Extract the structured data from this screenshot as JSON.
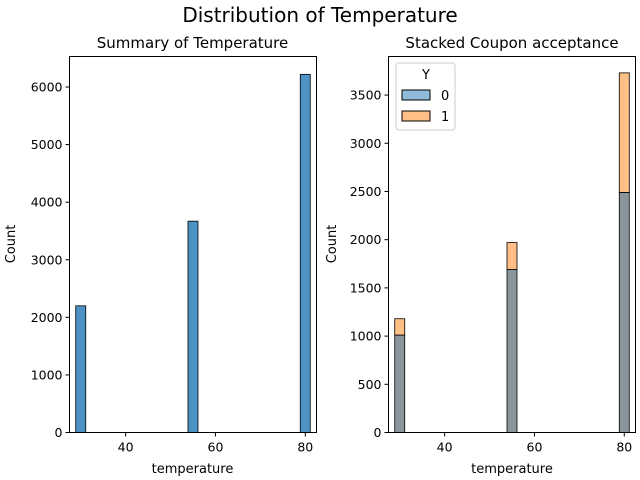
{
  "figure": {
    "suptitle": "Distribution of Temperature"
  },
  "chart_data": [
    {
      "type": "bar",
      "title": "Summary of Temperature",
      "xlabel": "temperature",
      "ylabel": "Count",
      "x": [
        30,
        55,
        80
      ],
      "values": [
        2200,
        3670,
        6220
      ],
      "xlim": [
        27.5,
        82.5
      ],
      "ylim": [
        0,
        6530
      ],
      "xticks": [
        40,
        60,
        80
      ],
      "yticks": [
        0,
        1000,
        2000,
        3000,
        4000,
        5000,
        6000
      ],
      "bar_color": "#1f77b4",
      "legend": null,
      "grid": false
    },
    {
      "type": "bar",
      "stacked": true,
      "title": "Stacked Coupon acceptance",
      "xlabel": "temperature",
      "ylabel": "Count",
      "x": [
        30,
        55,
        80
      ],
      "series": [
        {
          "name": "0",
          "values": [
            1010,
            1690,
            2490
          ],
          "color": "#1f77b4"
        },
        {
          "name": "1",
          "values": [
            170,
            280,
            1240
          ],
          "color": "#ff7f0e"
        }
      ],
      "xlim": [
        27.5,
        82.5
      ],
      "ylim": [
        0,
        3900
      ],
      "xticks": [
        40,
        60,
        80
      ],
      "yticks": [
        0,
        500,
        1000,
        1500,
        2000,
        2500,
        3000,
        3500
      ],
      "legend": {
        "title": "Y",
        "position": "top-left"
      },
      "overlap_color": "#8a959b",
      "grid": false
    }
  ]
}
